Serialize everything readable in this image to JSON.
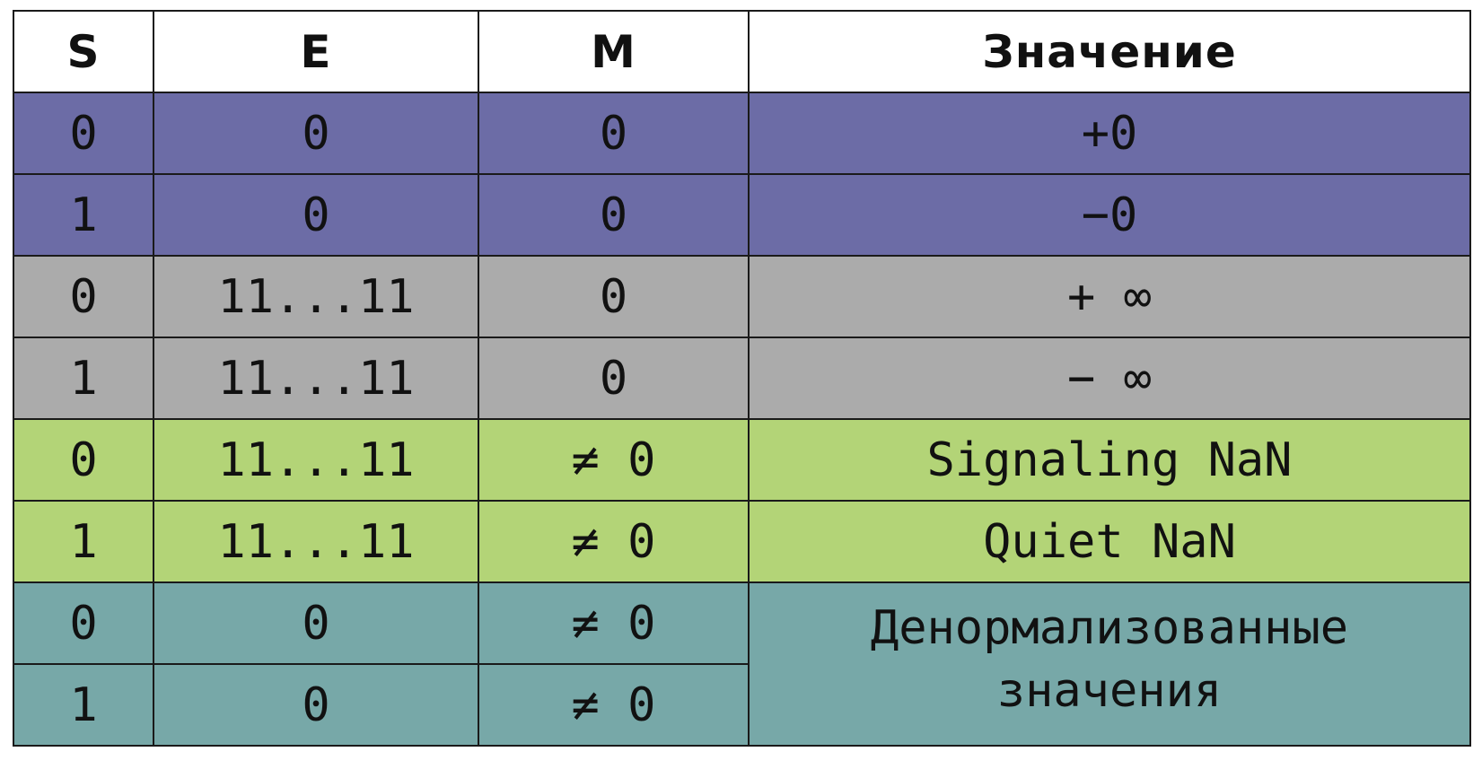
{
  "table": {
    "headers": {
      "s": "S",
      "e": "E",
      "m": "M",
      "value": "Значение"
    },
    "rows": [
      {
        "s": "0",
        "e": "0",
        "m": "0",
        "value": "+0",
        "group": "zero",
        "color": "#6c6ca6"
      },
      {
        "s": "1",
        "e": "0",
        "m": "0",
        "value": "−0",
        "group": "zero",
        "color": "#6c6ca6"
      },
      {
        "s": "0",
        "e": "11...11",
        "m": "0",
        "value": "+ ∞",
        "group": "infinity",
        "color": "#ababab"
      },
      {
        "s": "1",
        "e": "11...11",
        "m": "0",
        "value": "− ∞",
        "group": "infinity",
        "color": "#ababab"
      },
      {
        "s": "0",
        "e": "11...11",
        "m": "≠ 0",
        "value": "Signaling NaN",
        "group": "nan",
        "color": "#b3d477"
      },
      {
        "s": "1",
        "e": "11...11",
        "m": "≠ 0",
        "value": "Quiet NaN",
        "group": "nan",
        "color": "#b3d477"
      },
      {
        "s": "0",
        "e": "0",
        "m": "≠ 0",
        "group": "denormalized",
        "color": "#77a8a8"
      },
      {
        "s": "1",
        "e": "0",
        "m": "≠ 0",
        "group": "denormalized",
        "color": "#77a8a8"
      }
    ],
    "denormalized_value": {
      "line1": "Денормализованные",
      "line2": "значения"
    }
  }
}
